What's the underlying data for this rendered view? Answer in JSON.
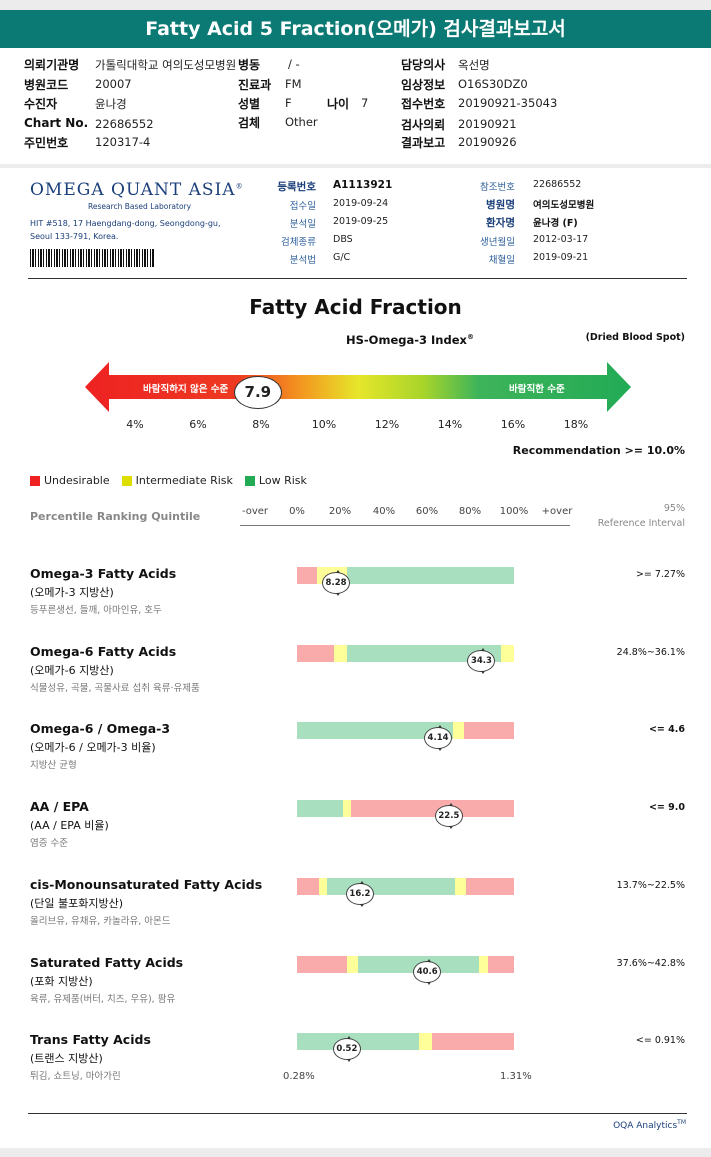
{
  "title": "Fatty Acid 5 Fraction(오메가) 검사결과보고서",
  "order": {
    "r1": {
      "l1": "의뢰기관명",
      "v1": "가톨릭대학교 여의도성모병원",
      "l2": "병동",
      "v2": "/ -",
      "l3": "담당의사",
      "v3": "옥선명"
    },
    "r2": {
      "l1": "병원코드",
      "v1": "20007",
      "l2": "진료과",
      "v2": "FM",
      "l3": "임상정보",
      "v3": "O16S30DZ0"
    },
    "r3": {
      "l1": "수진자",
      "v1": "윤나경",
      "l2": "성별",
      "v2": "F",
      "l2b": "나이",
      "v2b": "7",
      "l3": "접수번호",
      "v3": "20190921-35043"
    },
    "r4": {
      "l1": "Chart No.",
      "v1": "22686552",
      "l2": "검체",
      "v2": "Other",
      "l3": "검사의뢰",
      "v3": "20190921"
    },
    "r5": {
      "l1": "주민번호",
      "v1": "120317-4",
      "l3": "결과보고",
      "v3": "20190926"
    }
  },
  "lab": {
    "logo": "OMEGA QUANT ASIA",
    "logo_mark": "®",
    "tagline": "Research Based Laboratory",
    "addr1": "HIT #518, 17 Haengdang-dong, Seongdong-gu,",
    "addr2": "Seoul 133-791, Korea."
  },
  "meta": {
    "reg_l": "등록번호",
    "reg_v": "A1113921",
    "recv_l": "접수일",
    "recv_v": "2019-09-24",
    "anal_l": "분석일",
    "anal_v": "2019-09-25",
    "spec_l": "검체종류",
    "spec_v": "DBS",
    "meth_l": "분석법",
    "meth_v": "G/C",
    "ref_l": "참조번호",
    "ref_v": "22686552",
    "hosp_l": "병원명",
    "hosp_v": "여의도성모병원",
    "pat_l": "환자명",
    "pat_v": "윤나경 (F)",
    "dob_l": "생년월일",
    "dob_v": "2012-03-17",
    "col_l": "채혈일",
    "col_v": "2019-09-21"
  },
  "section_title": "Fatty Acid Fraction",
  "index": {
    "name": "HS-Omega-3 Index",
    "name_mark": "®",
    "specimen": "(Dried Blood Spot)",
    "left_label": "바람직하지 않은 수준",
    "right_label": "바람직한 수준",
    "value": "7.9",
    "value_num": 7.9,
    "ticks": [
      "4%",
      "6%",
      "8%",
      "10%",
      "12%",
      "14%",
      "16%",
      "18%"
    ],
    "recommendation": "Recommendation  >= 10.0%"
  },
  "legend": [
    {
      "label": "Undesirable",
      "color": "#ee2222"
    },
    {
      "label": "Intermediate Risk",
      "color": "#dddd00"
    },
    {
      "label": "Low Risk",
      "color": "#22aa55"
    }
  ],
  "ranking": {
    "label": "Percentile Ranking Quintile",
    "ticks": [
      "-over",
      "0%",
      "20%",
      "40%",
      "60%",
      "80%",
      "100%",
      "+over"
    ],
    "ref_header1": "95%",
    "ref_header2": "Reference Interval"
  },
  "colors": {
    "red": "#f9aaaa",
    "yellow": "#ffff99",
    "green": "#a8e0bf"
  },
  "rows": [
    {
      "name": "Omega-3 Fatty Acids",
      "sub": "(오메가-3 지방산)",
      "food": "등푸른생선, 들깨, 아마인유, 호두",
      "value": "8.28",
      "ref": ">= 7.27%",
      "bold": false,
      "segs": [
        {
          "c": "red",
          "from": 0,
          "to": 0.09
        },
        {
          "c": "yellow",
          "from": 0.09,
          "to": 0.23
        },
        {
          "c": "green",
          "from": 0.23,
          "to": 1
        }
      ],
      "pos": 0.18
    },
    {
      "name": "Omega-6 Fatty Acids",
      "sub": "(오메가-6 지방산)",
      "food": "식물성유, 곡물, 곡물사료 섭취 육류·유제품",
      "value": "34.3",
      "ref": "24.8%~36.1%",
      "bold": false,
      "segs": [
        {
          "c": "red",
          "from": 0,
          "to": 0.17
        },
        {
          "c": "yellow",
          "from": 0.17,
          "to": 0.23
        },
        {
          "c": "green",
          "from": 0.23,
          "to": 0.94
        },
        {
          "c": "yellow",
          "from": 0.94,
          "to": 1
        }
      ],
      "pos": 0.85
    },
    {
      "name": "Omega-6 / Omega-3",
      "sub": "(오메가-6 / 오메가-3 비율)",
      "food": "지방산 균형",
      "value": "4.14",
      "ref": "<= 4.6",
      "bold": true,
      "segs": [
        {
          "c": "green",
          "from": 0,
          "to": 0.72
        },
        {
          "c": "yellow",
          "from": 0.72,
          "to": 0.77
        },
        {
          "c": "red",
          "from": 0.77,
          "to": 1
        }
      ],
      "pos": 0.65
    },
    {
      "name": "AA / EPA",
      "sub": "(AA / EPA 비율)",
      "food": "염증 수준",
      "value": "22.5",
      "ref": "<= 9.0",
      "bold": true,
      "segs": [
        {
          "c": "green",
          "from": 0,
          "to": 0.21
        },
        {
          "c": "yellow",
          "from": 0.21,
          "to": 0.25
        },
        {
          "c": "red",
          "from": 0.25,
          "to": 1
        }
      ],
      "pos": 0.7
    },
    {
      "name": "cis-Monounsaturated Fatty Acids",
      "sub": "(단일 불포화지방산)",
      "food": "올리브유, 유채유, 카놀라유, 아몬드",
      "value": "16.2",
      "ref": "13.7%~22.5%",
      "bold": false,
      "segs": [
        {
          "c": "red",
          "from": 0,
          "to": 0.1
        },
        {
          "c": "yellow",
          "from": 0.1,
          "to": 0.14
        },
        {
          "c": "green",
          "from": 0.14,
          "to": 0.73
        },
        {
          "c": "yellow",
          "from": 0.73,
          "to": 0.78
        },
        {
          "c": "red",
          "from": 0.78,
          "to": 1
        }
      ],
      "pos": 0.29
    },
    {
      "name": "Saturated Fatty Acids",
      "sub": "(포화 지방산)",
      "food": "육류, 유제품(버터, 치즈, 우유), 팜유",
      "value": "40.6",
      "ref": "37.6%~42.8%",
      "bold": false,
      "segs": [
        {
          "c": "red",
          "from": 0,
          "to": 0.23
        },
        {
          "c": "yellow",
          "from": 0.23,
          "to": 0.28
        },
        {
          "c": "green",
          "from": 0.28,
          "to": 0.84
        },
        {
          "c": "yellow",
          "from": 0.84,
          "to": 0.88
        },
        {
          "c": "red",
          "from": 0.88,
          "to": 1
        }
      ],
      "pos": 0.6
    },
    {
      "name": "Trans Fatty Acids",
      "sub": "(트랜스 지방산)",
      "food": "튀김, 쇼트닝, 마아가린",
      "value": "0.52",
      "ref": "<= 0.91%",
      "bold": false,
      "segs": [
        {
          "c": "green",
          "from": 0,
          "to": 0.56
        },
        {
          "c": "yellow",
          "from": 0.56,
          "to": 0.62
        },
        {
          "c": "red",
          "from": 0.62,
          "to": 1
        }
      ],
      "pos": 0.23
    }
  ],
  "trans_scale": {
    "min": "0.28%",
    "max": "1.31%"
  },
  "footer": "OQA Analytics",
  "footer_mark": "TM"
}
